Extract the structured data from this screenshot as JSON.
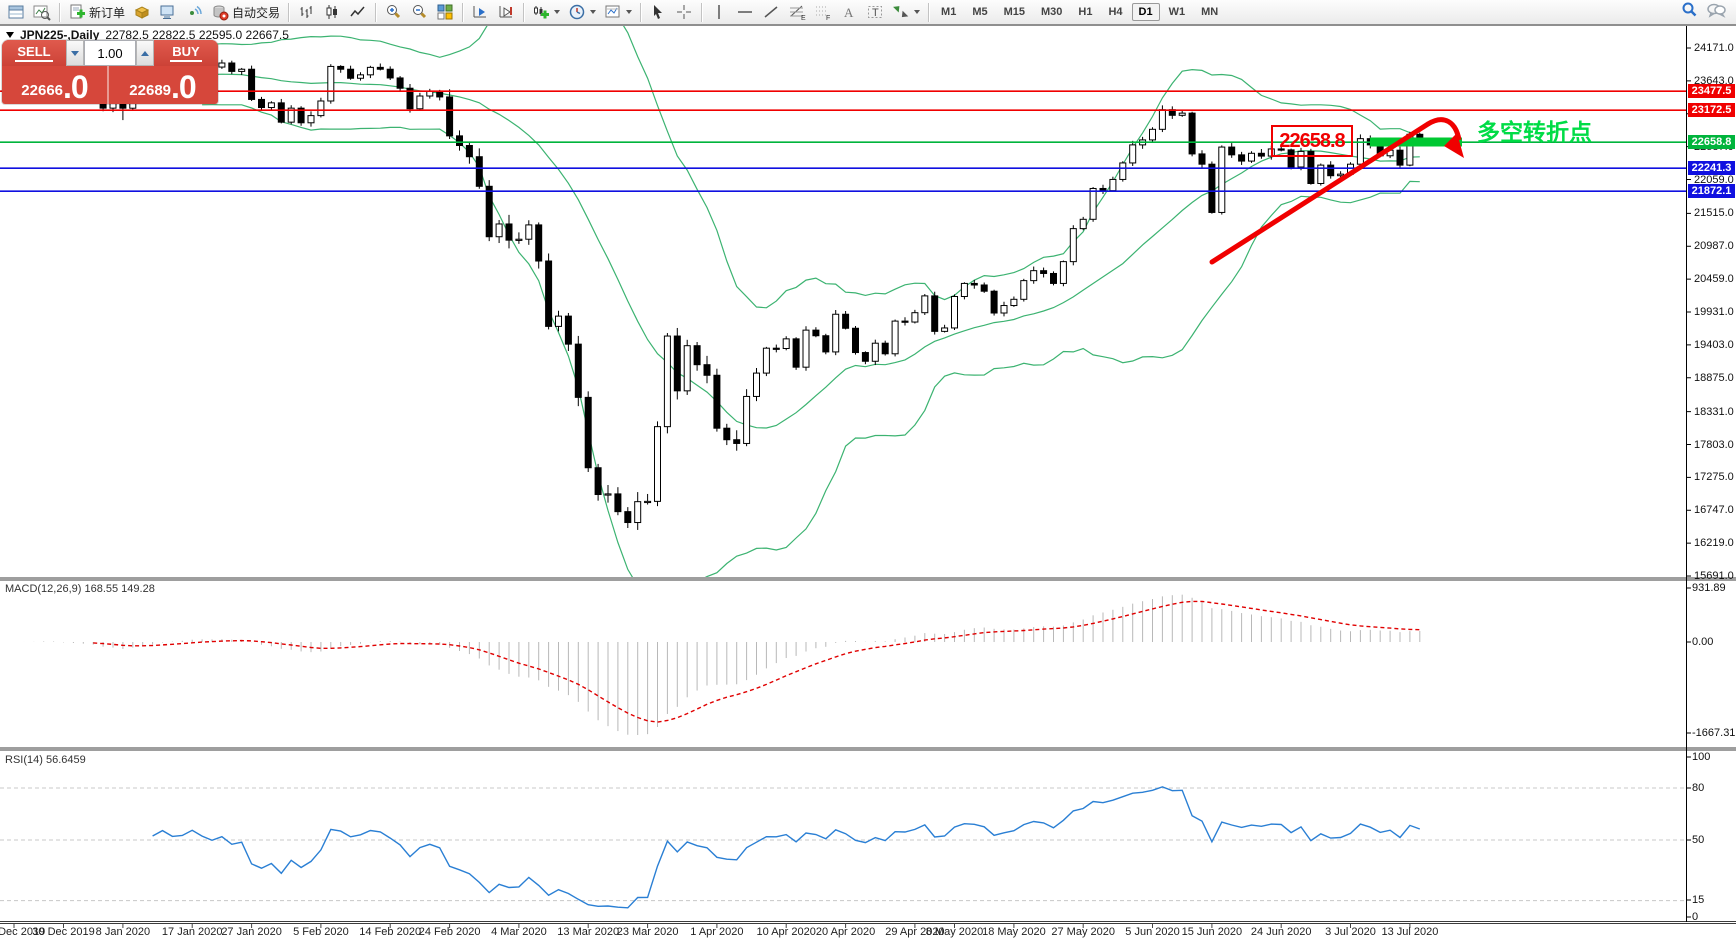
{
  "toolbar": {
    "new_order_label": "新订单",
    "autotrade_label": "自动交易",
    "timeframes": [
      "M1",
      "M5",
      "M15",
      "M30",
      "H1",
      "H4",
      "D1",
      "W1",
      "MN"
    ],
    "active_timeframe": "D1"
  },
  "chart": {
    "symbol_header": {
      "symbol": "JPN225-,Daily",
      "ohlc": "22782.5 22822.5 22595.0 22667.5"
    },
    "price_axis": {
      "ticks": [
        "24171.0",
        "23643.0",
        "23115.0",
        "22587.0",
        "22059.0",
        "21515.0",
        "20987.0",
        "20459.0",
        "19931.0",
        "19403.0",
        "18875.0",
        "18331.0",
        "17803.0",
        "17275.0",
        "16747.0",
        "16219.0",
        "15691.0"
      ]
    },
    "hlines": [
      {
        "label": "23477.5",
        "price": 23477.5,
        "color": "#f00000"
      },
      {
        "label": "23172.5",
        "price": 23172.5,
        "color": "#f00000"
      },
      {
        "label": "22658.8",
        "price": 22658.8,
        "color": "#00b43c"
      },
      {
        "label": "22241.3",
        "price": 22241.3,
        "color": "#1010e0"
      },
      {
        "label": "21872.1",
        "price": 21872.1,
        "color": "#1010e0"
      }
    ],
    "annotations": {
      "price_tag": "22658.8",
      "note": "多空转折点",
      "note_color": "#00dc46",
      "arrow_color": "#f00000",
      "bar_color": "#00c832"
    }
  },
  "trade_panel": {
    "sell_label": "SELL",
    "buy_label": "BUY",
    "volume": "1.00",
    "sell_price_main": "22666",
    "sell_price_frac": ".0",
    "buy_price_main": "22689",
    "buy_price_frac": ".0"
  },
  "macd": {
    "name": "MACD(12,26,9)",
    "values": "168.55 149.28",
    "axis": [
      "931.89",
      "0.00",
      "-1667.31"
    ]
  },
  "rsi": {
    "name": "RSI(14)",
    "value": "56.6459",
    "axis": [
      "100",
      "80",
      "50",
      "15",
      "0"
    ],
    "levels": [
      80,
      50,
      15
    ]
  },
  "date_axis": {
    "ticks": [
      {
        "label": "20 Dec 2019",
        "i": 0
      },
      {
        "label": "30 Dec 2019",
        "i": 5
      },
      {
        "label": "8 Jan 2020",
        "i": 11
      },
      {
        "label": "17 Jan 2020",
        "i": 18
      },
      {
        "label": "27 Jan 2020",
        "i": 24
      },
      {
        "label": "5 Feb 2020",
        "i": 31
      },
      {
        "label": "14 Feb 2020",
        "i": 38
      },
      {
        "label": "24 Feb 2020",
        "i": 44
      },
      {
        "label": "4 Mar 2020",
        "i": 51
      },
      {
        "label": "13 Mar 2020",
        "i": 58
      },
      {
        "label": "23 Mar 2020",
        "i": 64
      },
      {
        "label": "1 Apr 2020",
        "i": 71
      },
      {
        "label": "10 Apr 2020",
        "i": 78
      },
      {
        "label": "20 Apr 2020",
        "i": 84
      },
      {
        "label": "29 Apr 2020",
        "i": 91
      },
      {
        "label": "8 May 2020",
        "i": 95
      },
      {
        "label": "18 May 2020",
        "i": 101
      },
      {
        "label": "27 May 2020",
        "i": 108
      },
      {
        "label": "5 Jun 2020",
        "i": 115
      },
      {
        "label": "15 Jun 2020",
        "i": 121
      },
      {
        "label": "24 Jun 2020",
        "i": 128
      },
      {
        "label": "3 Jul 2020",
        "i": 135
      },
      {
        "label": "13 Jul 2020",
        "i": 141
      }
    ]
  },
  "chart_data": {
    "type": "candlestick",
    "symbol": "JPN225-",
    "timeframe": "Daily",
    "last_ohlc": {
      "open": "22782.5",
      "high": "22822.5",
      "low": "22595.0",
      "close": "22667.5"
    },
    "indicators": {
      "bollinger_period": 20,
      "bollinger_dev": 2,
      "macd": [
        12,
        26,
        9
      ],
      "rsi_period": 14
    },
    "closes": [
      23820,
      23830,
      23840,
      23920,
      23840,
      23660,
      23655,
      23625,
      23540,
      23205,
      23365,
      23204,
      23740,
      23850,
      23905,
      24025,
      23915,
      23933,
      24041,
      23940,
      23865,
      23930,
      23795,
      23830,
      23345,
      23215,
      23290,
      22980,
      23205,
      22970,
      23085,
      23320,
      23875,
      23830,
      23685,
      23740,
      23860,
      23830,
      23690,
      23525,
      23195,
      23400,
      23480,
      23385,
      22760,
      22605,
      22425,
      21950,
      21140,
      21345,
      21085,
      21100,
      21330,
      20750,
      19700,
      19865,
      19415,
      18560,
      17430,
      17000,
      17010,
      16725,
      16550,
      16885,
      16890,
      18090,
      19545,
      18665,
      19390,
      19085,
      18915,
      18065,
      17880,
      17820,
      18575,
      18950,
      19350,
      19345,
      19500,
      19045,
      19640,
      19550,
      19290,
      19895,
      19670,
      19280,
      19140,
      19430,
      19260,
      19785,
      19770,
      19920,
      20190,
      19620,
      19675,
      20180,
      20390,
      20365,
      20265,
      19915,
      20035,
      20135,
      20435,
      20595,
      20550,
      20390,
      20740,
      21270,
      21420,
      21915,
      21880,
      22060,
      22325,
      22615,
      22695,
      22865,
      23180,
      23090,
      23125,
      22470,
      22305,
      21530,
      22580,
      22455,
      22355,
      22480,
      22435,
      22550,
      22535,
      22260,
      22510,
      21995,
      22290,
      22120,
      22145,
      22305,
      22715,
      22615,
      22440,
      22530,
      22290,
      22785,
      22667.5
    ]
  }
}
